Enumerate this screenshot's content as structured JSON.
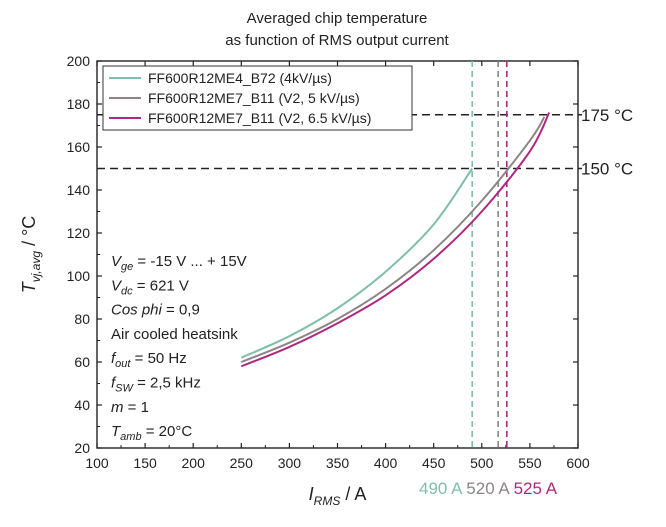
{
  "chart_data": {
    "type": "line",
    "title_line1": "Averaged chip temperature",
    "title_line2": "as function of RMS output current",
    "xlabel": {
      "main": "I",
      "sub": "RMS",
      "unit": " / A"
    },
    "ylabel": {
      "main": "T",
      "sub": "vj,avg",
      "unit": " / °C"
    },
    "xlim": [
      100,
      600
    ],
    "ylim": [
      20,
      200
    ],
    "xticks": [
      100,
      150,
      200,
      250,
      300,
      350,
      400,
      450,
      500,
      550,
      600
    ],
    "yticks": [
      20,
      40,
      60,
      80,
      100,
      120,
      140,
      160,
      180,
      200
    ],
    "grid": false,
    "legend_position": "top",
    "series": [
      {
        "name": "FF600R12ME4_B72 (4kV/µs)",
        "color": "#7fbfa8",
        "x": [
          250,
          300,
          350,
          400,
          450,
          490
        ],
        "y": [
          62,
          72,
          85,
          102,
          124,
          150
        ]
      },
      {
        "name": "FF600R12ME7_B11 (V2, 5 kV/µs)",
        "color": "#8c8585",
        "x": [
          250,
          300,
          350,
          400,
          450,
          500,
          550,
          565
        ],
        "y": [
          60,
          69,
          80,
          94,
          112,
          135,
          163,
          174
        ]
      },
      {
        "name": "FF600R12ME7_B11 (V2, 6.5 kV/µs)",
        "color": "#b0287e",
        "x": [
          250,
          300,
          350,
          400,
          450,
          500,
          550,
          570
        ],
        "y": [
          58,
          67,
          78,
          91,
          108,
          130,
          158,
          176
        ]
      }
    ],
    "reference_lines": {
      "horizontal": [
        {
          "y": 175,
          "label": "175 °C"
        },
        {
          "y": 150,
          "label": "150 °C"
        }
      ],
      "vertical": [
        {
          "x": 490,
          "color": "#7fbfa8",
          "label": "490 A"
        },
        {
          "x": 517,
          "color": "#8c8585",
          "label": "520 A"
        },
        {
          "x": 526,
          "color": "#b0287e",
          "label": "525 A"
        }
      ]
    },
    "annotations": [
      {
        "main": "V",
        "sub": "ge",
        "rest": " = -15 V ... + 15V"
      },
      {
        "main": "V",
        "sub": "dc",
        "rest": " = 621 V"
      },
      {
        "main": "Cos phi",
        "sub": "",
        "rest": " = 0,9"
      },
      {
        "main": "",
        "sub": "",
        "rest": "Air cooled heatsink"
      },
      {
        "main": "f",
        "sub": "out",
        "rest": " = 50 Hz"
      },
      {
        "main": "f",
        "sub": "SW",
        "rest": " = 2,5 kHz"
      },
      {
        "main": "m",
        "sub": "",
        "rest": " = 1"
      },
      {
        "main": "T",
        "sub": "amb",
        "rest": " = 20°C"
      }
    ]
  }
}
